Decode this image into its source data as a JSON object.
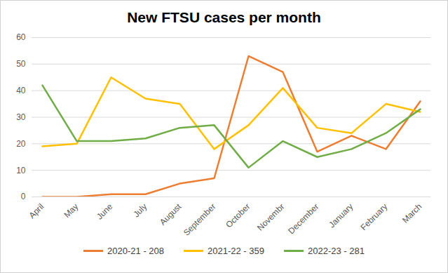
{
  "chart_data": {
    "type": "line",
    "title": "New FTSU cases per month",
    "categories": [
      "April",
      "May",
      "June",
      "July",
      "August",
      "September",
      "October",
      "Novembr",
      "December",
      "January",
      "February",
      "March"
    ],
    "series": [
      {
        "name": "2020-21 - 208",
        "color": "#ed7d31",
        "values": [
          0,
          0,
          1,
          1,
          5,
          7,
          53,
          47,
          17,
          23,
          18,
          36
        ]
      },
      {
        "name": "2021-22 - 359",
        "color": "#ffc000",
        "values": [
          19,
          20,
          45,
          37,
          35,
          18,
          27,
          41,
          26,
          24,
          35,
          32
        ]
      },
      {
        "name": "2022-23 - 281",
        "color": "#70ad47",
        "values": [
          42,
          21,
          21,
          22,
          26,
          27,
          11,
          21,
          15,
          18,
          24,
          33
        ]
      }
    ],
    "ylim": [
      0,
      60
    ],
    "yticks": [
      0,
      10,
      20,
      30,
      40,
      50,
      60
    ],
    "grid": true,
    "legend": "bottom"
  }
}
